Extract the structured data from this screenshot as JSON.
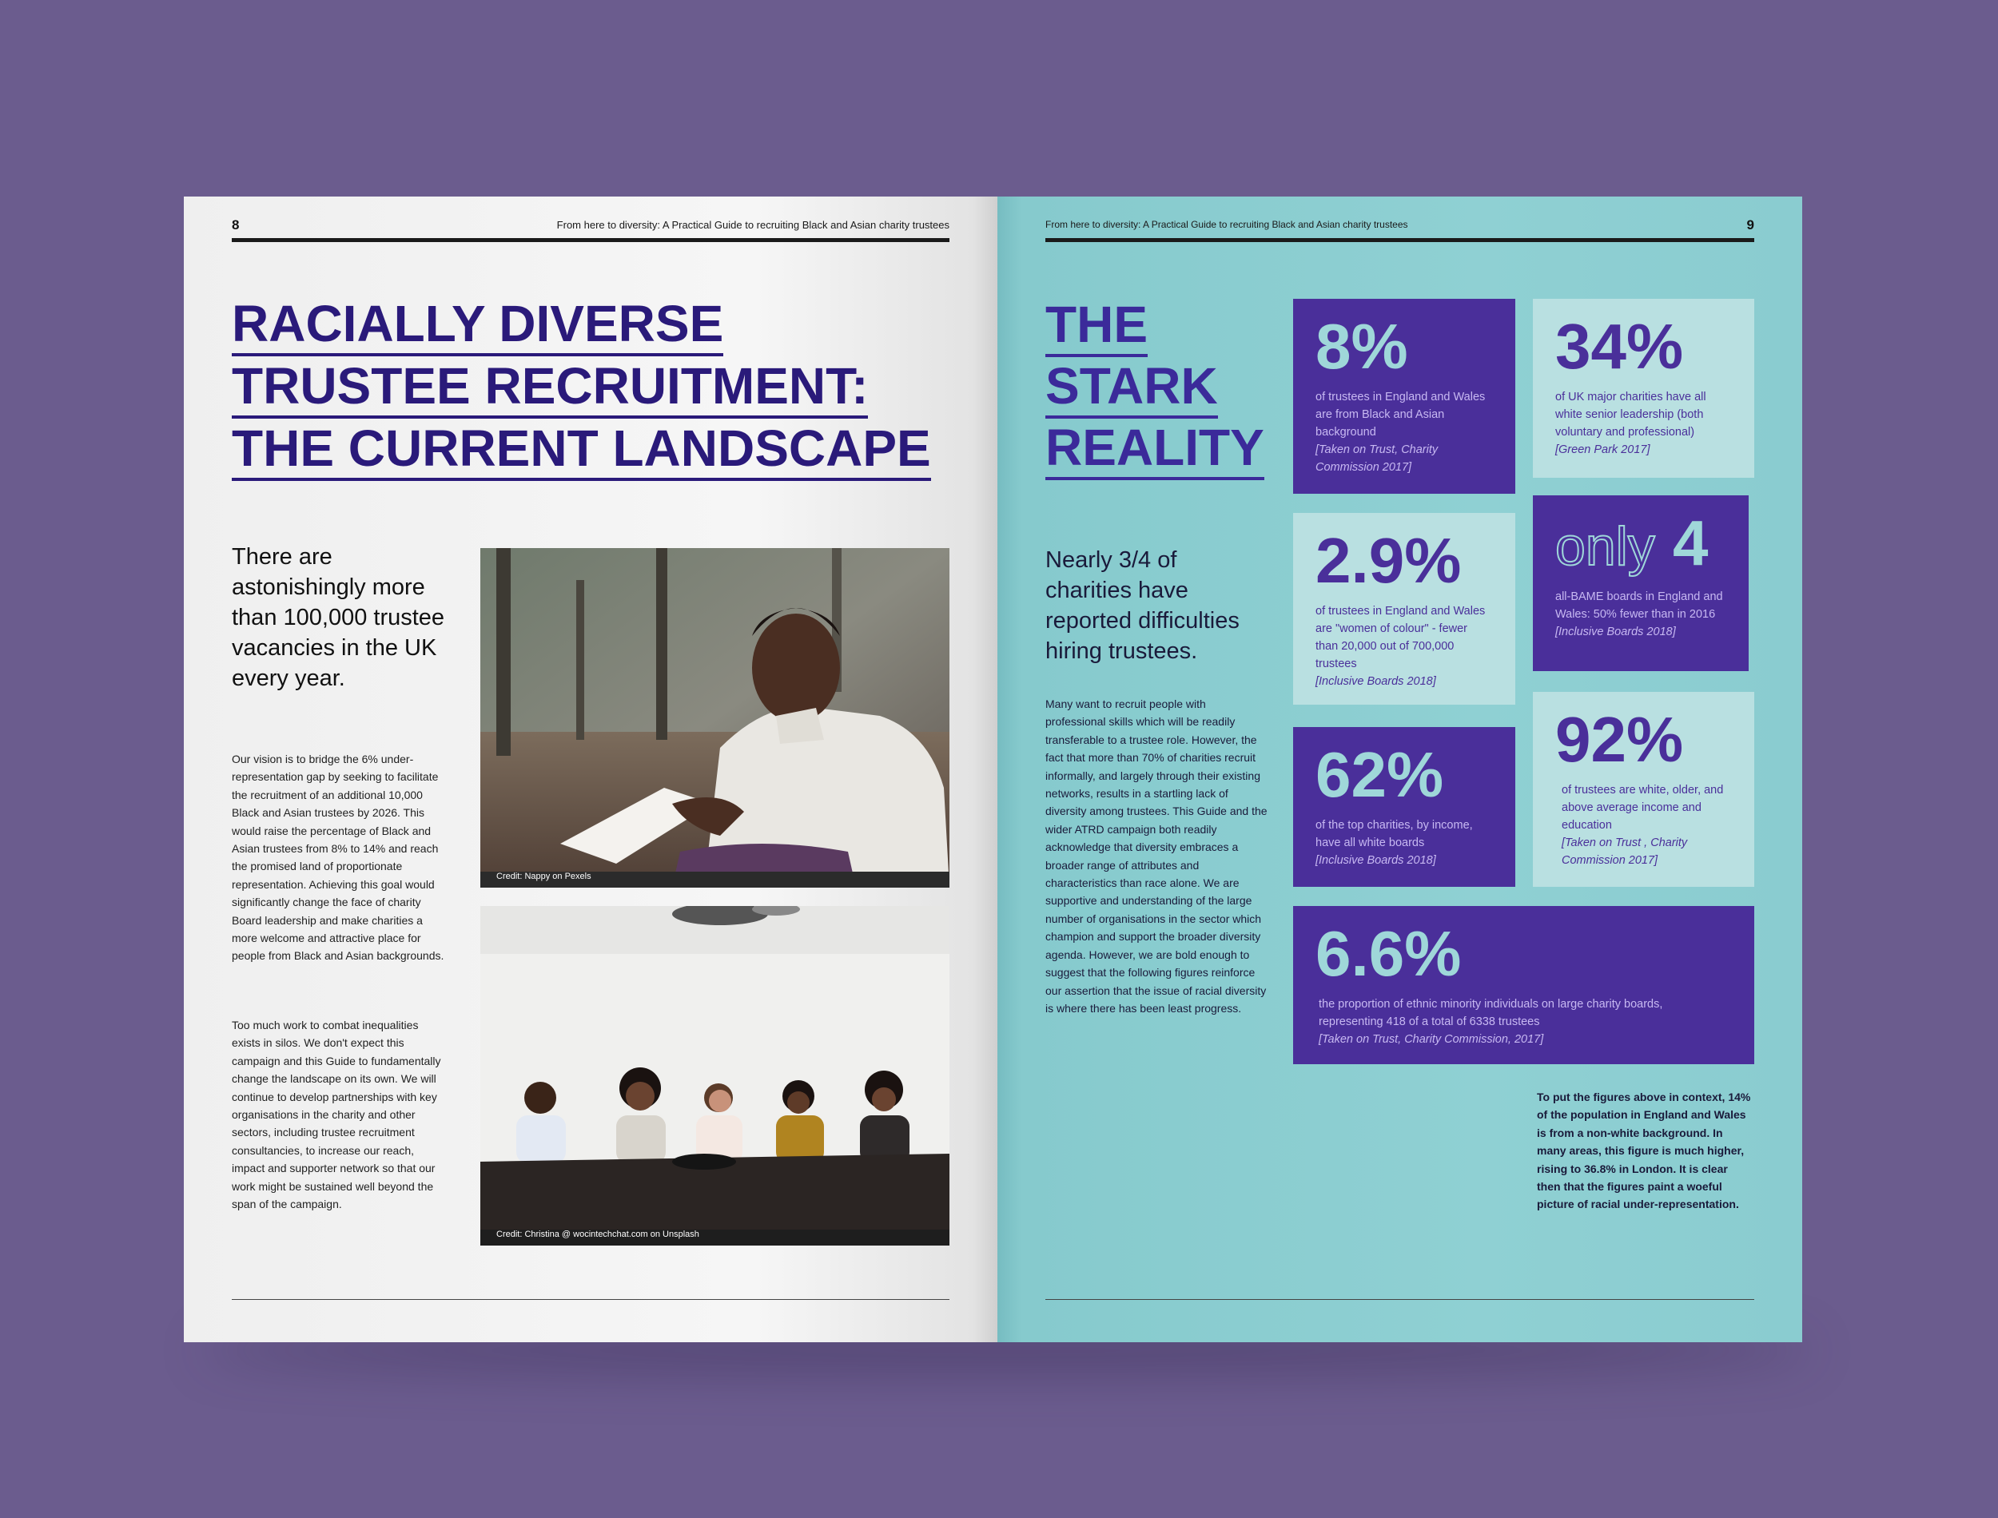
{
  "left_page": {
    "page_number": "8",
    "header": "From here to diversity: A Practical Guide to recruiting Black and Asian charity trustees",
    "title_lines": [
      "RACIALLY DIVERSE",
      "TRUSTEE RECRUITMENT:",
      "THE CURRENT LANDSCAPE"
    ],
    "lead": "There are astonishingly more than 100,000 trustee vacancies in the UK every year.",
    "paragraph1": "Our vision is to bridge the 6% under-representation gap by seeking to facilitate the recruitment of an additional 10,000 Black and Asian trustees by 2026. This would raise the percentage of Black and Asian trustees from 8% to 14% and reach the promised land of proportionate representation. Achieving this goal would significantly change the face of charity Board leadership and make charities a more welcome and attractive place for people from Black and Asian backgrounds.",
    "paragraph2": "Too much work to combat inequalities exists in silos. We don't expect this campaign and this Guide to fundamentally change the landscape on its own. We will continue to develop partnerships with key organisations in the charity and other sectors, including trustee recruitment consultancies, to increase our reach, impact and supporter network so that our work might be sustained well beyond the span of the campaign.",
    "photo1_credit": "Credit: Nappy on Pexels",
    "photo2_credit": "Credit: Christina @ wocintechchat.com on Unsplash"
  },
  "right_page": {
    "page_number": "9",
    "header": "From here to diversity: A Practical Guide to recruiting Black and Asian charity trustees",
    "title_lines": [
      "THE",
      "STARK",
      "REALITY"
    ],
    "lead": "Nearly 3/4 of charities have reported difficulties hiring trustees.",
    "paragraph": "Many want to recruit people with professional skills which will be readily transferable to a trustee role. However, the fact that more than 70% of charities recruit informally, and largely through their existing networks, results in a startling lack of diversity among trustees. This Guide and the wider ATRD campaign both readily acknowledge that diversity embraces a broader range of attributes and characteristics than race alone. We are supportive and understanding of the large number of organisations in the sector which champion and support the broader diversity agenda. However, we are bold enough to suggest that the following figures reinforce our assertion that the issue of racial diversity is where there has been least progress.",
    "stats": [
      {
        "value": "8%",
        "text": "of trustees in England and Wales are from Black and Asian background",
        "source": "[Taken on Trust, Charity Commission 2017]"
      },
      {
        "value": "34%",
        "text": "of UK major charities have all white senior leadership (both voluntary and professional)",
        "source": "[Green Park 2017]"
      },
      {
        "value": "2.9%",
        "text": "of trustees in England and Wales are \"women of colour\" - fewer than 20,000 out of 700,000 trustees",
        "source": "[Inclusive Boards 2018]"
      },
      {
        "value_prefix": "only",
        "value": "4",
        "text": "all-BAME boards in England and Wales: 50% fewer than in 2016",
        "source": "[Inclusive Boards 2018]"
      },
      {
        "value": "62%",
        "text": "of the top charities, by income, have all white boards",
        "source": "[Inclusive Boards 2018]"
      },
      {
        "value": "92%",
        "text": "of trustees are white, older, and above average income and education",
        "source": "[Taken on Trust , Charity Commission 2017]"
      },
      {
        "value": "6.6%",
        "text": "the proportion of ethnic minority individuals on large charity boards, representing 418 of a total of 6338 trustees",
        "source": "[Taken on Trust, Charity Commission, 2017]"
      }
    ],
    "context": "To put the figures above in context, 14% of the population in England and Wales is from a non-white background. In many areas, this figure is much higher, rising to 36.8% in London. It is clear then that the figures paint a woeful picture of racial under-representation."
  },
  "colors": {
    "background": "#6b5c8e",
    "title_purple": "#2a1a7a",
    "teal_page": "#8fd0d3",
    "dark_box": "#4a2f9a",
    "light_box": "#b9e0e1"
  }
}
